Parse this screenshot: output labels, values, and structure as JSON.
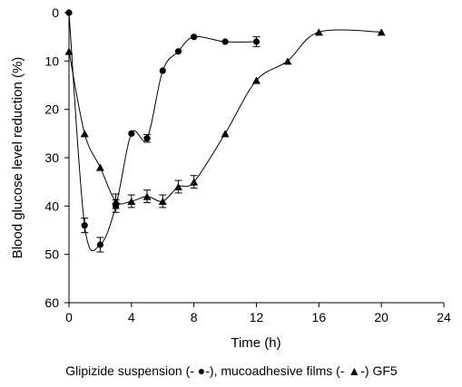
{
  "chart_data": {
    "type": "line",
    "xlabel": "Time (h)",
    "ylabel": "Blood glucose level reduction (%)",
    "xlim": [
      0,
      24
    ],
    "ylim": [
      0,
      60
    ],
    "y_inverted": true,
    "xticks": [
      "0",
      "4",
      "8",
      "12",
      "16",
      "20",
      "24"
    ],
    "yticks": [
      "0",
      "10",
      "20",
      "30",
      "40",
      "50",
      "60"
    ],
    "grid": false,
    "caption": "Glipizide suspension (- ●-), mucoadhesive films (- ▲-) GF5",
    "series": [
      {
        "marker": "circle",
        "color": "#000000",
        "points": [
          {
            "x": 0,
            "y": 0
          },
          {
            "x": 1,
            "y": 44,
            "err": 1.5
          },
          {
            "x": 2,
            "y": 48,
            "err": 1.5
          },
          {
            "x": 3,
            "y": 40,
            "err": 1.3
          },
          {
            "x": 4,
            "y": 25
          },
          {
            "x": 5,
            "y": 26,
            "err": 0.8
          },
          {
            "x": 6,
            "y": 12
          },
          {
            "x": 7,
            "y": 8
          },
          {
            "x": 8,
            "y": 5
          },
          {
            "x": 10,
            "y": 6
          },
          {
            "x": 12,
            "y": 6,
            "err": 1
          }
        ]
      },
      {
        "marker": "triangle",
        "color": "#000000",
        "points": [
          {
            "x": 0,
            "y": 8
          },
          {
            "x": 1,
            "y": 25
          },
          {
            "x": 2,
            "y": 32
          },
          {
            "x": 3,
            "y": 39,
            "err": 1.5
          },
          {
            "x": 4,
            "y": 39,
            "err": 1.3
          },
          {
            "x": 5,
            "y": 38,
            "err": 1.3
          },
          {
            "x": 6,
            "y": 39,
            "err": 1.3
          },
          {
            "x": 7,
            "y": 36,
            "err": 1.3
          },
          {
            "x": 8,
            "y": 35,
            "err": 1.3
          },
          {
            "x": 10,
            "y": 25
          },
          {
            "x": 12,
            "y": 14
          },
          {
            "x": 14,
            "y": 10
          },
          {
            "x": 16,
            "y": 4
          },
          {
            "x": 20,
            "y": 4
          }
        ]
      }
    ]
  }
}
